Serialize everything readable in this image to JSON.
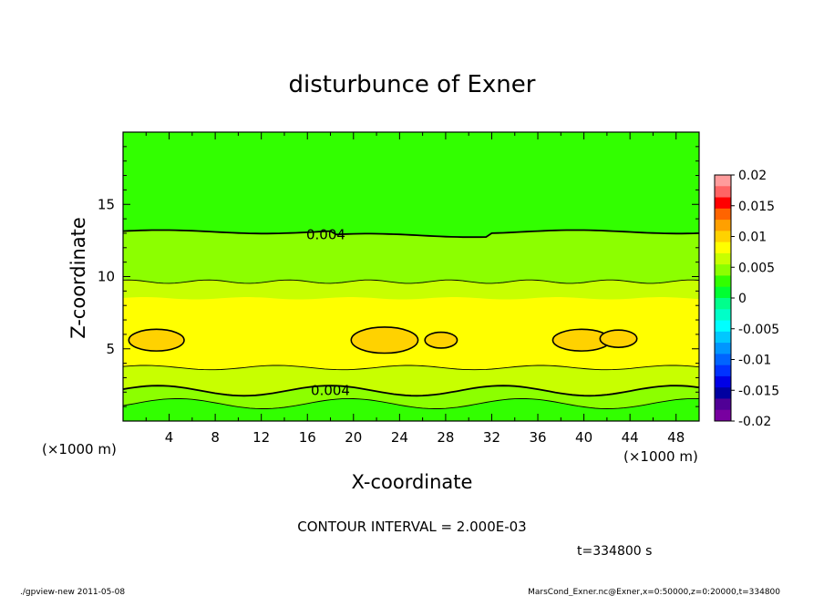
{
  "chart_data": {
    "type": "heatmap",
    "title": "disturbunce of Exner",
    "xlabel": "X-coordinate",
    "ylabel": "Z-coordinate",
    "x_unit_left": "(×1000 m)",
    "x_unit_right": "(×1000 m)",
    "xlim": [
      0,
      50
    ],
    "ylim": [
      0,
      20
    ],
    "xticks": [
      4,
      8,
      12,
      16,
      20,
      24,
      28,
      32,
      36,
      40,
      44,
      48
    ],
    "yticks": [
      5,
      10,
      15
    ],
    "contour_labels": [
      {
        "text": "0.004",
        "x": 17.6,
        "z": 12.9
      },
      {
        "text": "0.004",
        "x": 18.0,
        "z": 2.1
      }
    ],
    "colorbar": {
      "ticks": [
        "0.02",
        "0.015",
        "0.01",
        "0.005",
        "0",
        "-0.005",
        "-0.01",
        "-0.015",
        "-0.02"
      ],
      "range": [
        -0.02,
        0.02
      ],
      "colors": [
        "#ff9c9c",
        "#ff6464",
        "#ff0000",
        "#ff6400",
        "#ffa000",
        "#ffd200",
        "#ffff00",
        "#c8ff00",
        "#8cff00",
        "#32ff00",
        "#00ff32",
        "#00ff8c",
        "#00ffc8",
        "#00ffff",
        "#00c8ff",
        "#0096ff",
        "#0064ff",
        "#0032ff",
        "#0000e6",
        "#0000a0",
        "#500096",
        "#7800a0"
      ]
    },
    "contour_interval": "CONTOUR INTERVAL = 2.000E-03",
    "time_label": "t=334800 s"
  },
  "footer": {
    "left": "./gpview-new  2011-05-08",
    "right": "MarsCond_Exner.nc@Exner,x=0:50000,z=0:20000,t=334800"
  },
  "colors": {
    "band_low": "#32ff00",
    "band_mid": "#8cff00",
    "band_high": "#c8ff00",
    "band_peak": "#ffff00",
    "blob": "#ffd200"
  }
}
